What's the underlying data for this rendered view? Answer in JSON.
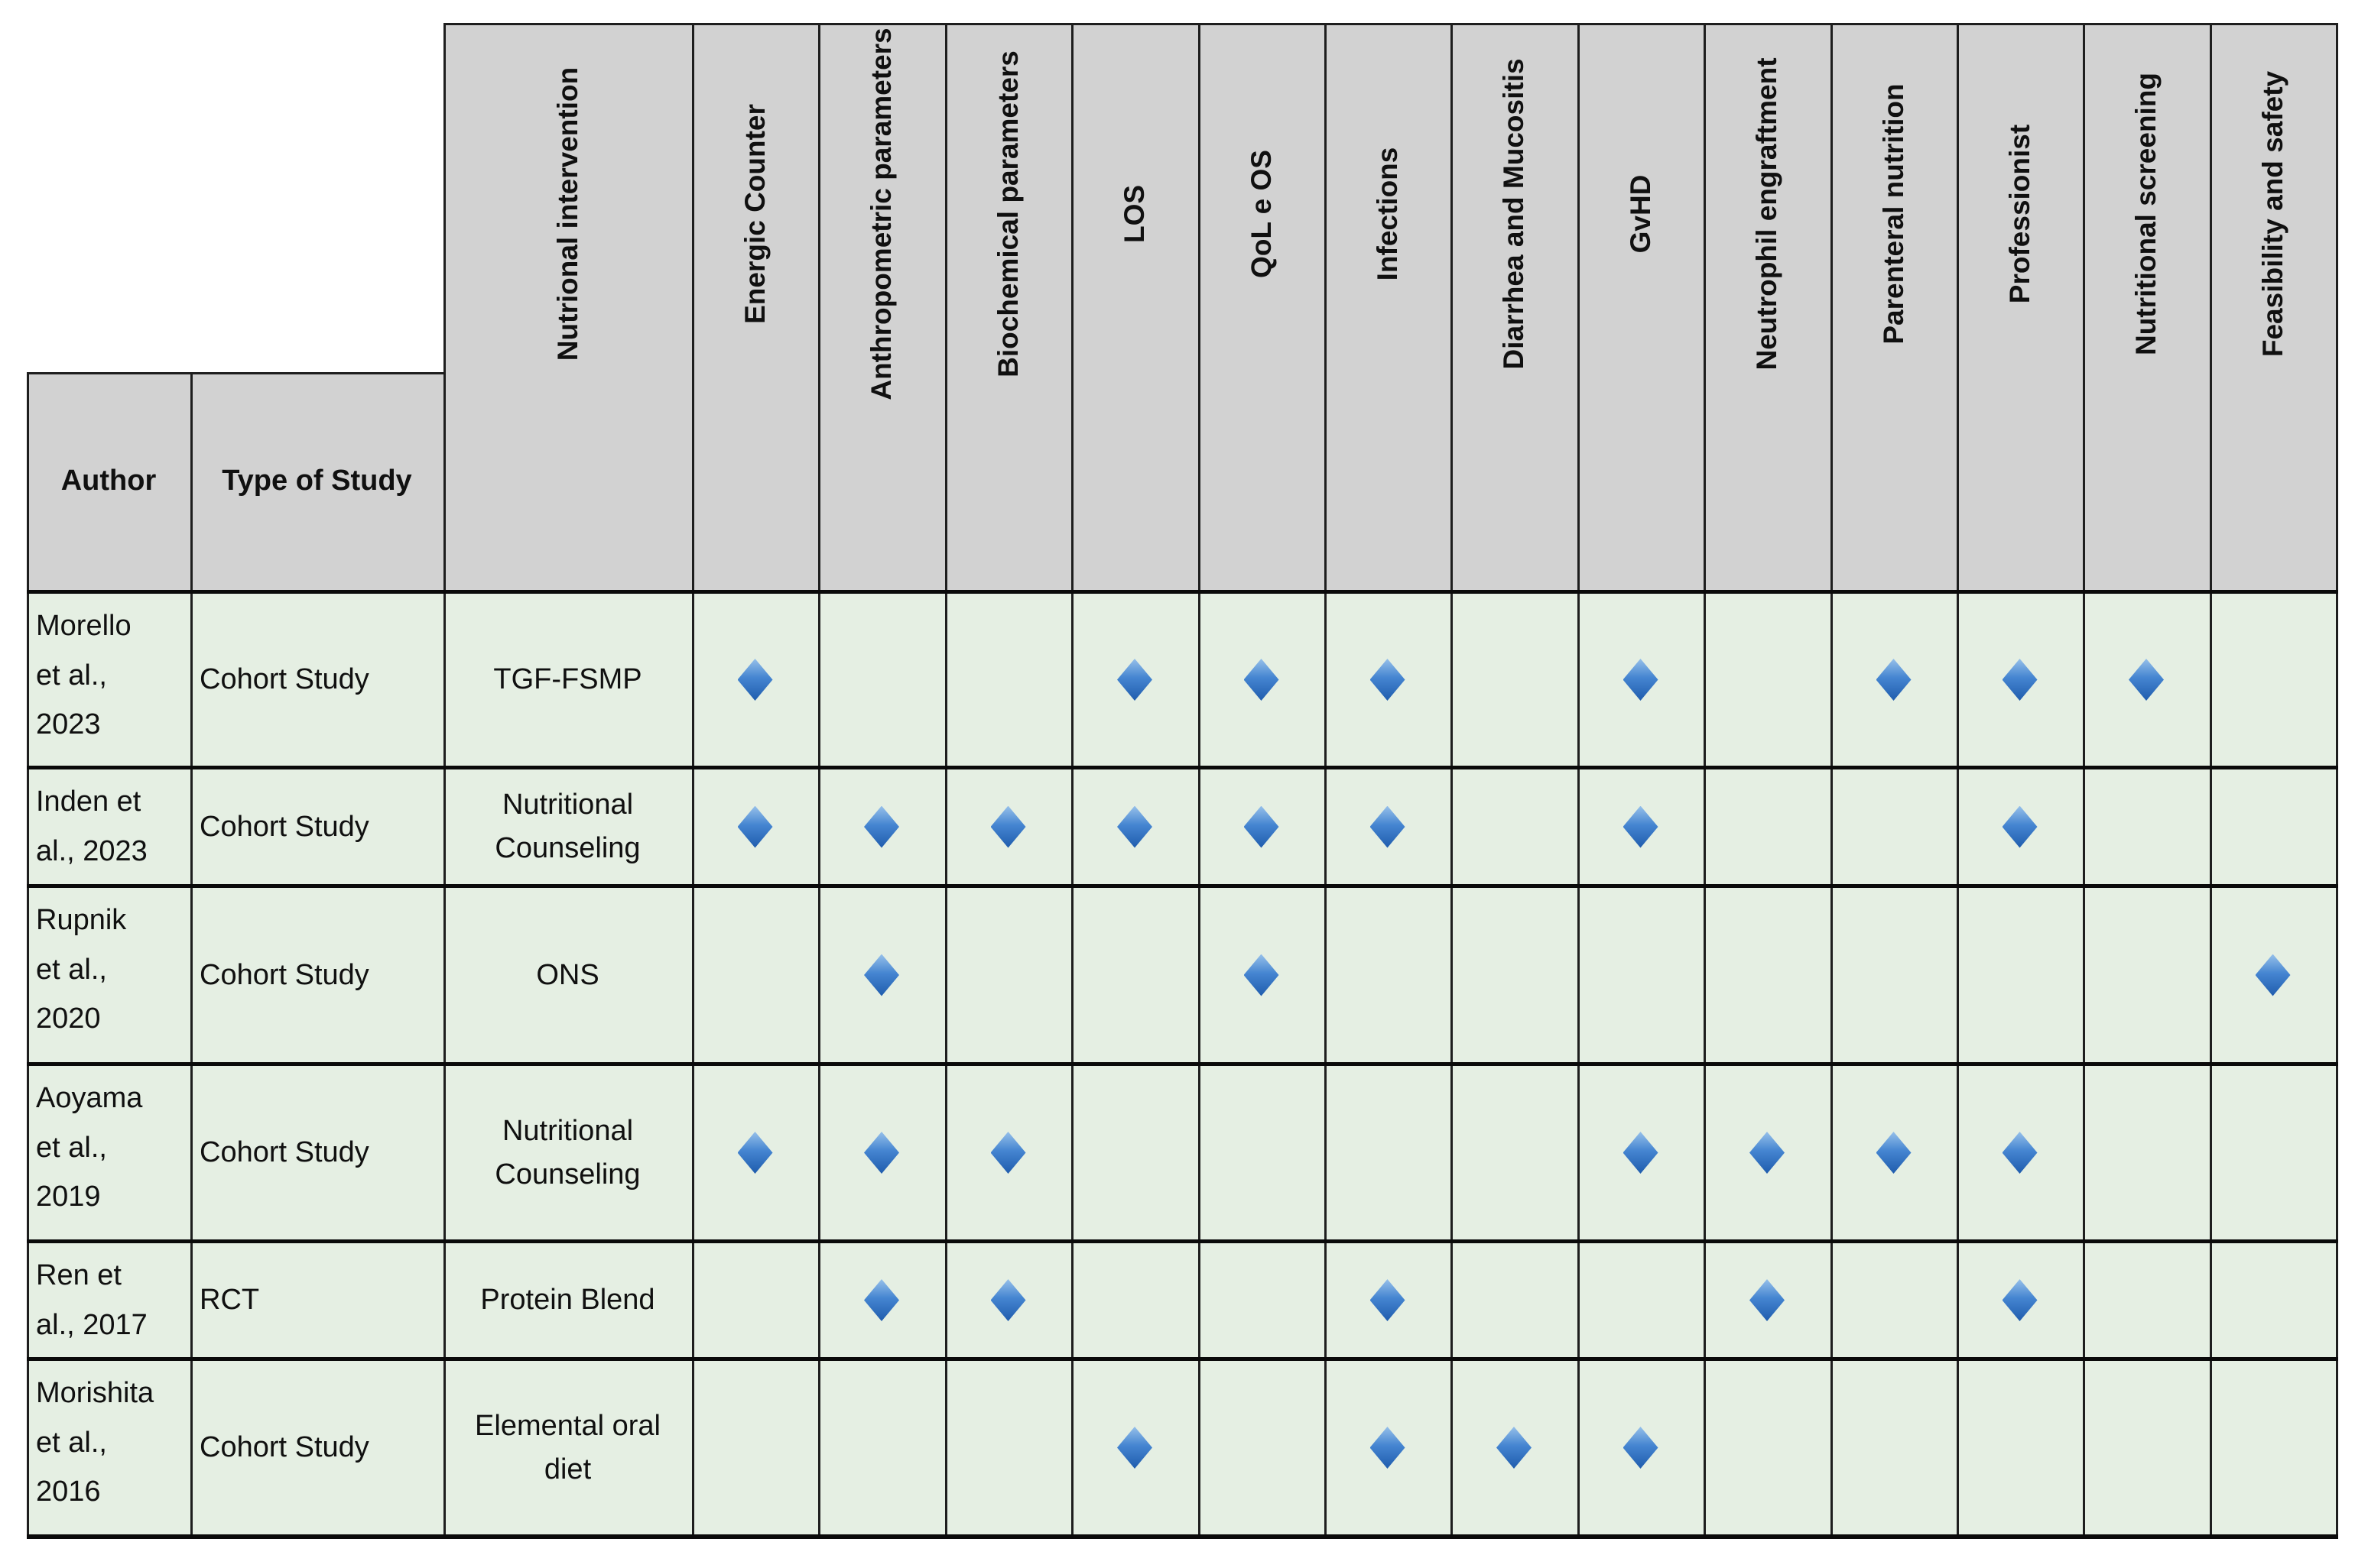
{
  "table": {
    "columns": [
      {
        "label": "Author",
        "rotated": false
      },
      {
        "label": "Type of Study",
        "rotated": false
      },
      {
        "label": "Nutrional intervention",
        "rotated": true
      },
      {
        "label": "Energic Counter",
        "rotated": true
      },
      {
        "label": "Anthropometric parameters",
        "rotated": true
      },
      {
        "label": "Biochemical parameters",
        "rotated": true
      },
      {
        "label": "LOS",
        "rotated": true
      },
      {
        "label": "QoL e OS",
        "rotated": true
      },
      {
        "label": "Infections",
        "rotated": true
      },
      {
        "label": "Diarrhea and Mucositis",
        "rotated": true
      },
      {
        "label": "GvHD",
        "rotated": true
      },
      {
        "label": "Neutrophil engraftment",
        "rotated": true
      },
      {
        "label": "Parenteral nutrition",
        "rotated": true
      },
      {
        "label": "Professionist",
        "rotated": true
      },
      {
        "label": "Nutritional screening",
        "rotated": true
      },
      {
        "label": "Feasibility and safety",
        "rotated": true
      }
    ],
    "rows": [
      {
        "author": "Morello et al., 2023",
        "type_of_study": "Cohort Study",
        "intervention": "TGF-FSMP",
        "outcomes": [
          1,
          0,
          0,
          1,
          1,
          1,
          0,
          1,
          0,
          1,
          1,
          1,
          0
        ]
      },
      {
        "author": "Inden et al., 2023",
        "type_of_study": "Cohort Study",
        "intervention": "Nutritional Counseling",
        "outcomes": [
          1,
          1,
          1,
          1,
          1,
          1,
          0,
          1,
          0,
          0,
          1,
          0,
          0
        ]
      },
      {
        "author": "Rupnik et al., 2020",
        "type_of_study": "Cohort Study",
        "intervention": "ONS",
        "outcomes": [
          0,
          1,
          0,
          0,
          1,
          0,
          0,
          0,
          0,
          0,
          0,
          0,
          1
        ]
      },
      {
        "author": "Aoyama et al., 2019",
        "type_of_study": "Cohort Study",
        "intervention": "Nutritional Counseling",
        "outcomes": [
          1,
          1,
          1,
          0,
          0,
          0,
          0,
          1,
          1,
          1,
          1,
          0,
          0
        ]
      },
      {
        "author": "Ren et al., 2017",
        "type_of_study": "RCT",
        "intervention": "Protein Blend",
        "outcomes": [
          0,
          1,
          1,
          0,
          0,
          1,
          0,
          0,
          1,
          0,
          1,
          0,
          0
        ]
      },
      {
        "author": "Morishita et al., 2016",
        "type_of_study": "Cohort Study",
        "intervention": "Elemental oral diet",
        "outcomes": [
          0,
          0,
          0,
          1,
          0,
          1,
          1,
          1,
          0,
          0,
          0,
          0,
          0
        ]
      }
    ],
    "marker": {
      "shape": "diamond",
      "color_top": "#96c0ea",
      "color_mid": "#4585d1",
      "color_bottom": "#1f5cad"
    },
    "colors": {
      "header_bg": "#d2d2d2",
      "row_bg": "#e5efe3",
      "grid": "#1e1e1e",
      "text": "#101010"
    }
  }
}
